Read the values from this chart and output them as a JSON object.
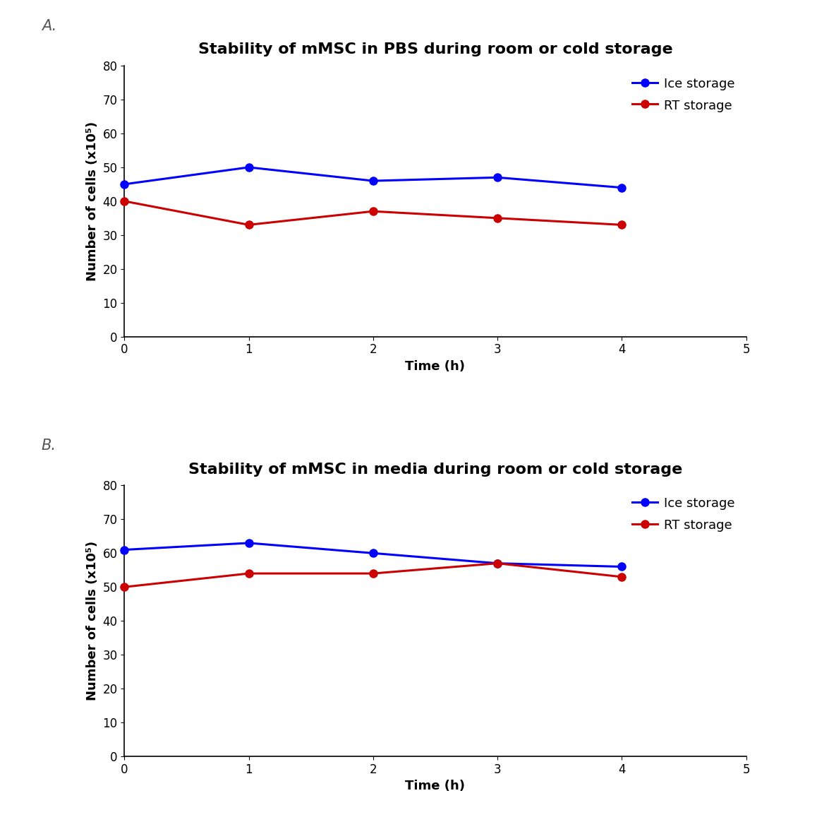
{
  "panel_A": {
    "title": "Stability of mMSC in PBS during room or cold storage",
    "x": [
      0,
      1,
      2,
      3,
      4
    ],
    "ice_y": [
      45,
      50,
      46,
      47,
      44
    ],
    "rt_y": [
      40,
      33,
      37,
      35,
      33
    ],
    "ice_color": "#0000FF",
    "rt_color": "#CC0000",
    "ice_label": "Ice storage",
    "rt_label": "RT storage",
    "xlim": [
      0,
      5
    ],
    "ylim": [
      0,
      80
    ],
    "yticks": [
      0,
      10,
      20,
      30,
      40,
      50,
      60,
      70,
      80
    ],
    "xticks": [
      0,
      1,
      2,
      3,
      4,
      5
    ],
    "xlabel": "Time (h)",
    "ylabel": "Number of cells (x10⁵)"
  },
  "panel_B": {
    "title": "Stability of mMSC in media during room or cold storage",
    "x": [
      0,
      1,
      2,
      3,
      4
    ],
    "ice_y": [
      61,
      63,
      60,
      57,
      56
    ],
    "rt_y": [
      50,
      54,
      54,
      57,
      53
    ],
    "ice_color": "#0000FF",
    "rt_color": "#CC0000",
    "ice_label": "Ice storage",
    "rt_label": "RT storage",
    "xlim": [
      0,
      5
    ],
    "ylim": [
      0,
      80
    ],
    "yticks": [
      0,
      10,
      20,
      30,
      40,
      50,
      60,
      70,
      80
    ],
    "xticks": [
      0,
      1,
      2,
      3,
      4,
      5
    ],
    "xlabel": "Time (h)",
    "ylabel": "Number of cells (x10⁵)"
  },
  "panel_labels": [
    "A.",
    "B."
  ],
  "background_color": "#FFFFFF",
  "marker": "o",
  "markersize": 8,
  "linewidth": 2.2,
  "title_fontsize": 16,
  "axis_label_fontsize": 13,
  "tick_fontsize": 12,
  "legend_fontsize": 13,
  "panel_label_fontsize": 15
}
